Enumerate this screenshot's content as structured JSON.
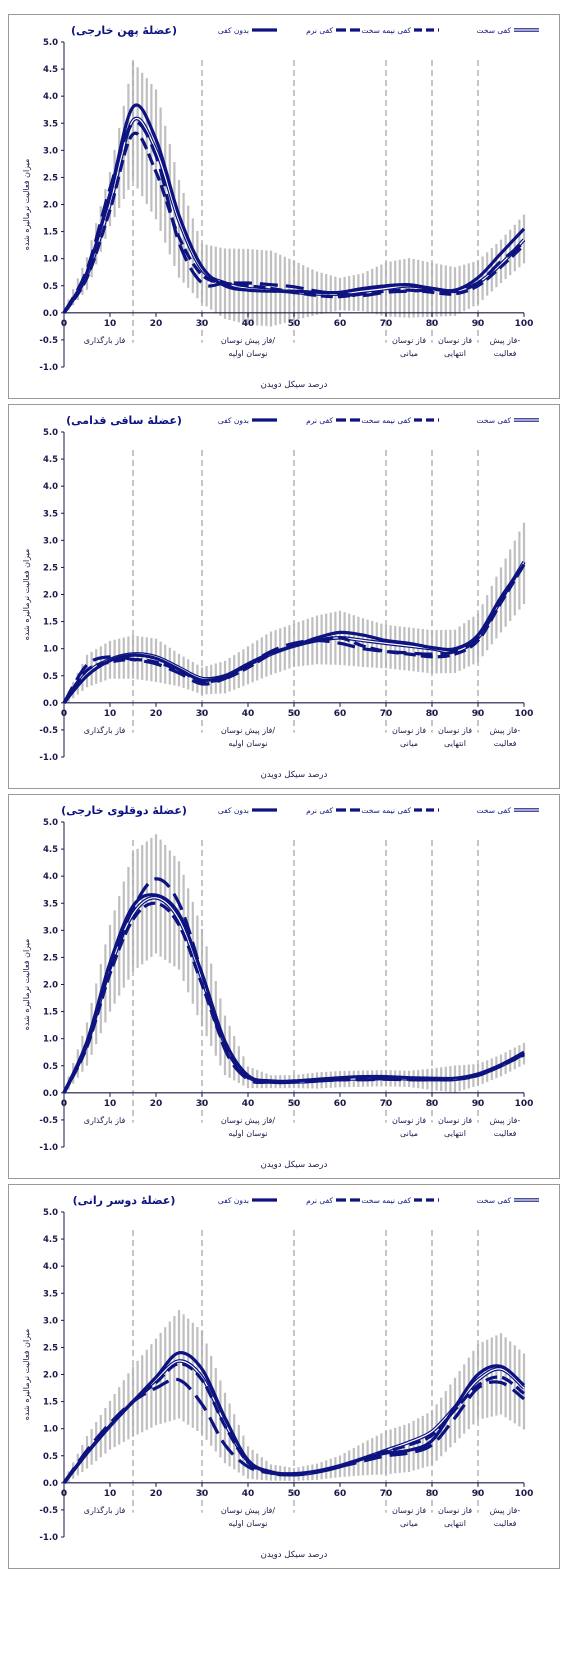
{
  "legend": {
    "rigid": "کفی سخت",
    "semi_rigid": "کفی نیمه سخت",
    "soft": "کفی نرم",
    "none": "بدون کفی"
  },
  "axis": {
    "xlabel": "درصد سیکل دویدن",
    "ylabel": "میزان فعالیت نرمالیزه شده",
    "x_ticks": [
      "0",
      "10",
      "20",
      "30",
      "40",
      "50",
      "60",
      "70",
      "80",
      "90",
      "100"
    ],
    "y_ticks": [
      "5.0",
      "4.5",
      "4.0",
      "3.5",
      "3.0",
      "2.5",
      "2.0",
      "1.5",
      "1.0",
      "0.5",
      "0.0",
      "-0.5",
      "-1.0"
    ]
  },
  "phases": {
    "loading": "فاز بارگذاری",
    "pre_swing_1": "فاز پیش نوسان/",
    "pre_swing_2": "نوسان اولیه",
    "mid_swing_1": "فاز نوسان",
    "mid_swing_2": "میانی",
    "term_swing_1": "فاز نوسان",
    "term_swing_2": "انتهایی",
    "pre_act_1": "فاز پیش-",
    "pre_act_2": "فعالیت"
  },
  "colors": {
    "series": "#0d1380",
    "band": "#b4b4b4",
    "phase_line": "#a0a0a0"
  },
  "chart_data": [
    {
      "type": "line",
      "title": "(عضلهٔ پهن خارجی)",
      "xlim": [
        0,
        100
      ],
      "ylim": [
        -1,
        5
      ],
      "phase_lines": [
        15,
        30,
        50,
        70,
        80,
        90
      ],
      "x": [
        0,
        5,
        10,
        15,
        20,
        25,
        30,
        35,
        40,
        45,
        50,
        55,
        60,
        65,
        70,
        75,
        80,
        85,
        90,
        95,
        100
      ],
      "series": [
        {
          "name": "کفی سخت",
          "values": [
            0,
            0.7,
            2.0,
            3.55,
            3.0,
            1.7,
            0.8,
            0.55,
            0.45,
            0.42,
            0.38,
            0.35,
            0.35,
            0.4,
            0.45,
            0.5,
            0.45,
            0.4,
            0.55,
            0.9,
            1.35
          ]
        },
        {
          "name": "کفی نیمه سخت",
          "values": [
            0,
            0.65,
            1.9,
            3.3,
            2.6,
            1.4,
            0.7,
            0.55,
            0.5,
            0.45,
            0.38,
            0.32,
            0.3,
            0.35,
            0.4,
            0.42,
            0.38,
            0.35,
            0.5,
            0.85,
            1.25
          ]
        },
        {
          "name": "کفی نرم",
          "values": [
            0,
            0.8,
            2.3,
            3.5,
            2.9,
            1.3,
            0.55,
            0.55,
            0.55,
            0.52,
            0.48,
            0.4,
            0.35,
            0.32,
            0.38,
            0.4,
            0.42,
            0.4,
            0.55,
            0.95,
            1.3
          ]
        },
        {
          "name": "بدون کفی",
          "values": [
            0,
            0.75,
            2.2,
            3.8,
            3.2,
            1.8,
            0.85,
            0.5,
            0.42,
            0.4,
            0.4,
            0.38,
            0.38,
            0.45,
            0.5,
            0.52,
            0.45,
            0.42,
            0.65,
            1.1,
            1.55
          ]
        }
      ],
      "band_sd": [
        0.05,
        0.3,
        0.5,
        1.1,
        1.2,
        0.9,
        0.55,
        0.65,
        0.7,
        0.7,
        0.55,
        0.4,
        0.3,
        0.35,
        0.5,
        0.55,
        0.5,
        0.45,
        0.4,
        0.4,
        0.45
      ]
    },
    {
      "type": "line",
      "title": "(عضلهٔ ساقی قدامی)",
      "xlim": [
        0,
        100
      ],
      "ylim": [
        -1,
        5
      ],
      "phase_lines": [
        15,
        30,
        50,
        70,
        80,
        90
      ],
      "x": [
        0,
        5,
        10,
        15,
        20,
        25,
        30,
        35,
        40,
        45,
        50,
        55,
        60,
        65,
        70,
        75,
        80,
        85,
        90,
        95,
        100
      ],
      "series": [
        {
          "name": "کفی سخت",
          "values": [
            0,
            0.55,
            0.8,
            0.9,
            0.85,
            0.65,
            0.45,
            0.5,
            0.7,
            0.9,
            1.05,
            1.15,
            1.2,
            1.15,
            1.1,
            1.05,
            1.0,
            0.95,
            1.2,
            1.9,
            2.6
          ]
        },
        {
          "name": "کفی نیمه سخت",
          "values": [
            0,
            0.6,
            0.75,
            0.8,
            0.75,
            0.6,
            0.4,
            0.45,
            0.65,
            0.9,
            1.05,
            1.15,
            1.2,
            1.05,
            0.95,
            0.9,
            0.85,
            0.9,
            1.15,
            1.85,
            2.55
          ]
        },
        {
          "name": "کفی نرم",
          "values": [
            0,
            0.7,
            0.85,
            0.8,
            0.72,
            0.55,
            0.35,
            0.45,
            0.7,
            0.95,
            1.1,
            1.15,
            1.1,
            1.0,
            0.95,
            0.92,
            0.9,
            0.95,
            1.2,
            1.9,
            2.6
          ]
        },
        {
          "name": "بدون کفی",
          "values": [
            0,
            0.5,
            0.78,
            0.88,
            0.82,
            0.62,
            0.42,
            0.5,
            0.72,
            0.92,
            1.05,
            1.2,
            1.3,
            1.25,
            1.15,
            1.1,
            1.02,
            1.0,
            1.25,
            1.95,
            2.55
          ]
        }
      ],
      "band_sd": [
        0.05,
        0.3,
        0.35,
        0.4,
        0.4,
        0.3,
        0.25,
        0.3,
        0.35,
        0.4,
        0.4,
        0.45,
        0.5,
        0.45,
        0.4,
        0.4,
        0.4,
        0.4,
        0.45,
        0.6,
        0.75
      ]
    },
    {
      "type": "line",
      "title": "(عضلهٔ دوقلوی خارجی)",
      "xlim": [
        0,
        100
      ],
      "ylim": [
        -1,
        5
      ],
      "phase_lines": [
        15,
        30,
        50,
        70,
        80,
        90
      ],
      "x": [
        0,
        5,
        10,
        15,
        20,
        25,
        30,
        35,
        40,
        45,
        50,
        55,
        60,
        65,
        70,
        75,
        80,
        85,
        90,
        95,
        100
      ],
      "series": [
        {
          "name": "کفی سخت",
          "values": [
            0,
            0.9,
            2.3,
            3.3,
            3.6,
            3.2,
            2.1,
            0.9,
            0.3,
            0.2,
            0.2,
            0.22,
            0.25,
            0.26,
            0.27,
            0.26,
            0.25,
            0.25,
            0.33,
            0.5,
            0.72
          ]
        },
        {
          "name": "کفی نیمه سخت",
          "values": [
            0,
            0.85,
            2.2,
            3.2,
            3.5,
            3.1,
            2.0,
            0.85,
            0.28,
            0.2,
            0.2,
            0.22,
            0.24,
            0.25,
            0.26,
            0.25,
            0.24,
            0.25,
            0.32,
            0.5,
            0.7
          ]
        },
        {
          "name": "کفی نرم",
          "values": [
            0,
            0.9,
            2.3,
            3.4,
            3.95,
            3.5,
            2.2,
            0.8,
            0.25,
            0.2,
            0.21,
            0.22,
            0.24,
            0.24,
            0.25,
            0.24,
            0.24,
            0.25,
            0.33,
            0.5,
            0.72
          ]
        },
        {
          "name": "بدون کفی",
          "values": [
            0,
            0.95,
            2.4,
            3.45,
            3.65,
            3.3,
            2.2,
            0.95,
            0.32,
            0.22,
            0.22,
            0.25,
            0.28,
            0.3,
            0.3,
            0.28,
            0.27,
            0.27,
            0.35,
            0.52,
            0.75
          ]
        }
      ],
      "band_sd": [
        0.05,
        0.4,
        0.8,
        1.1,
        1.1,
        1.0,
        0.9,
        0.55,
        0.2,
        0.12,
        0.12,
        0.15,
        0.15,
        0.15,
        0.15,
        0.15,
        0.2,
        0.25,
        0.2,
        0.2,
        0.2
      ]
    },
    {
      "type": "line",
      "title": "(عضلهٔ دوسر رانی)",
      "xlim": [
        0,
        100
      ],
      "ylim": [
        -1,
        5
      ],
      "phase_lines": [
        15,
        30,
        50,
        70,
        80,
        90
      ],
      "x": [
        0,
        5,
        10,
        15,
        20,
        25,
        30,
        35,
        40,
        45,
        50,
        55,
        60,
        65,
        70,
        75,
        80,
        85,
        90,
        95,
        100
      ],
      "series": [
        {
          "name": "کفی سخت",
          "values": [
            0,
            0.55,
            1.05,
            1.5,
            1.9,
            2.25,
            1.95,
            1.1,
            0.4,
            0.2,
            0.15,
            0.2,
            0.3,
            0.45,
            0.6,
            0.75,
            0.95,
            1.4,
            1.9,
            2.1,
            1.75
          ]
        },
        {
          "name": "کفی نیمه سخت",
          "values": [
            0,
            0.55,
            1.05,
            1.5,
            1.85,
            2.2,
            1.9,
            1.05,
            0.38,
            0.18,
            0.15,
            0.2,
            0.3,
            0.45,
            0.58,
            0.7,
            0.88,
            1.35,
            1.8,
            1.95,
            1.65
          ]
        },
        {
          "name": "کفی نرم",
          "values": [
            0,
            0.6,
            1.1,
            1.5,
            1.75,
            1.9,
            1.45,
            0.7,
            0.3,
            0.18,
            0.15,
            0.2,
            0.3,
            0.4,
            0.5,
            0.55,
            0.7,
            1.2,
            1.75,
            1.85,
            1.55
          ]
        },
        {
          "name": "بدون کفی",
          "values": [
            0,
            0.55,
            1.05,
            1.5,
            1.95,
            2.4,
            2.1,
            1.2,
            0.42,
            0.2,
            0.17,
            0.22,
            0.32,
            0.45,
            0.55,
            0.6,
            0.78,
            1.4,
            2.0,
            2.15,
            1.8
          ]
        }
      ],
      "band_sd": [
        0.05,
        0.3,
        0.45,
        0.65,
        0.8,
        1.0,
        0.95,
        0.65,
        0.3,
        0.15,
        0.12,
        0.15,
        0.2,
        0.3,
        0.4,
        0.45,
        0.5,
        0.6,
        0.7,
        0.75,
        0.7
      ]
    }
  ]
}
